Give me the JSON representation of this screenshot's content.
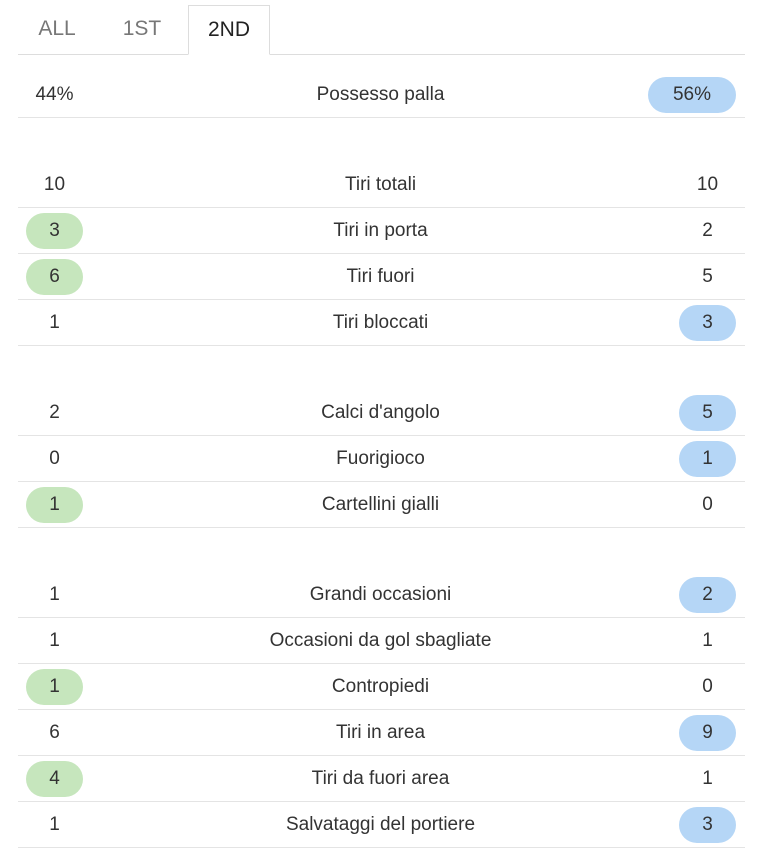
{
  "tabs": [
    {
      "label": "ALL",
      "active": false
    },
    {
      "label": "1ST",
      "active": false
    },
    {
      "label": "2ND",
      "active": true
    }
  ],
  "groups": [
    {
      "rows": [
        {
          "home": "44%",
          "label": "Possesso palla",
          "away": "56%",
          "highlight": "away"
        }
      ]
    },
    {
      "rows": [
        {
          "home": "10",
          "label": "Tiri totali",
          "away": "10",
          "highlight": null
        },
        {
          "home": "3",
          "label": "Tiri in porta",
          "away": "2",
          "highlight": "home"
        },
        {
          "home": "6",
          "label": "Tiri fuori",
          "away": "5",
          "highlight": "home"
        },
        {
          "home": "1",
          "label": "Tiri bloccati",
          "away": "3",
          "highlight": "away"
        }
      ]
    },
    {
      "rows": [
        {
          "home": "2",
          "label": "Calci d'angolo",
          "away": "5",
          "highlight": "away"
        },
        {
          "home": "0",
          "label": "Fuorigioco",
          "away": "1",
          "highlight": "away"
        },
        {
          "home": "1",
          "label": "Cartellini gialli",
          "away": "0",
          "highlight": "home"
        }
      ]
    },
    {
      "rows": [
        {
          "home": "1",
          "label": "Grandi occasioni",
          "away": "2",
          "highlight": "away"
        },
        {
          "home": "1",
          "label": "Occasioni da gol sbagliate",
          "away": "1",
          "highlight": null
        },
        {
          "home": "1",
          "label": "Contropiedi",
          "away": "0",
          "highlight": "home"
        },
        {
          "home": "6",
          "label": "Tiri in area",
          "away": "9",
          "highlight": "away"
        },
        {
          "home": "4",
          "label": "Tiri da fuori area",
          "away": "1",
          "highlight": "home"
        },
        {
          "home": "1",
          "label": "Salvataggi del portiere",
          "away": "3",
          "highlight": "away"
        }
      ]
    }
  ]
}
